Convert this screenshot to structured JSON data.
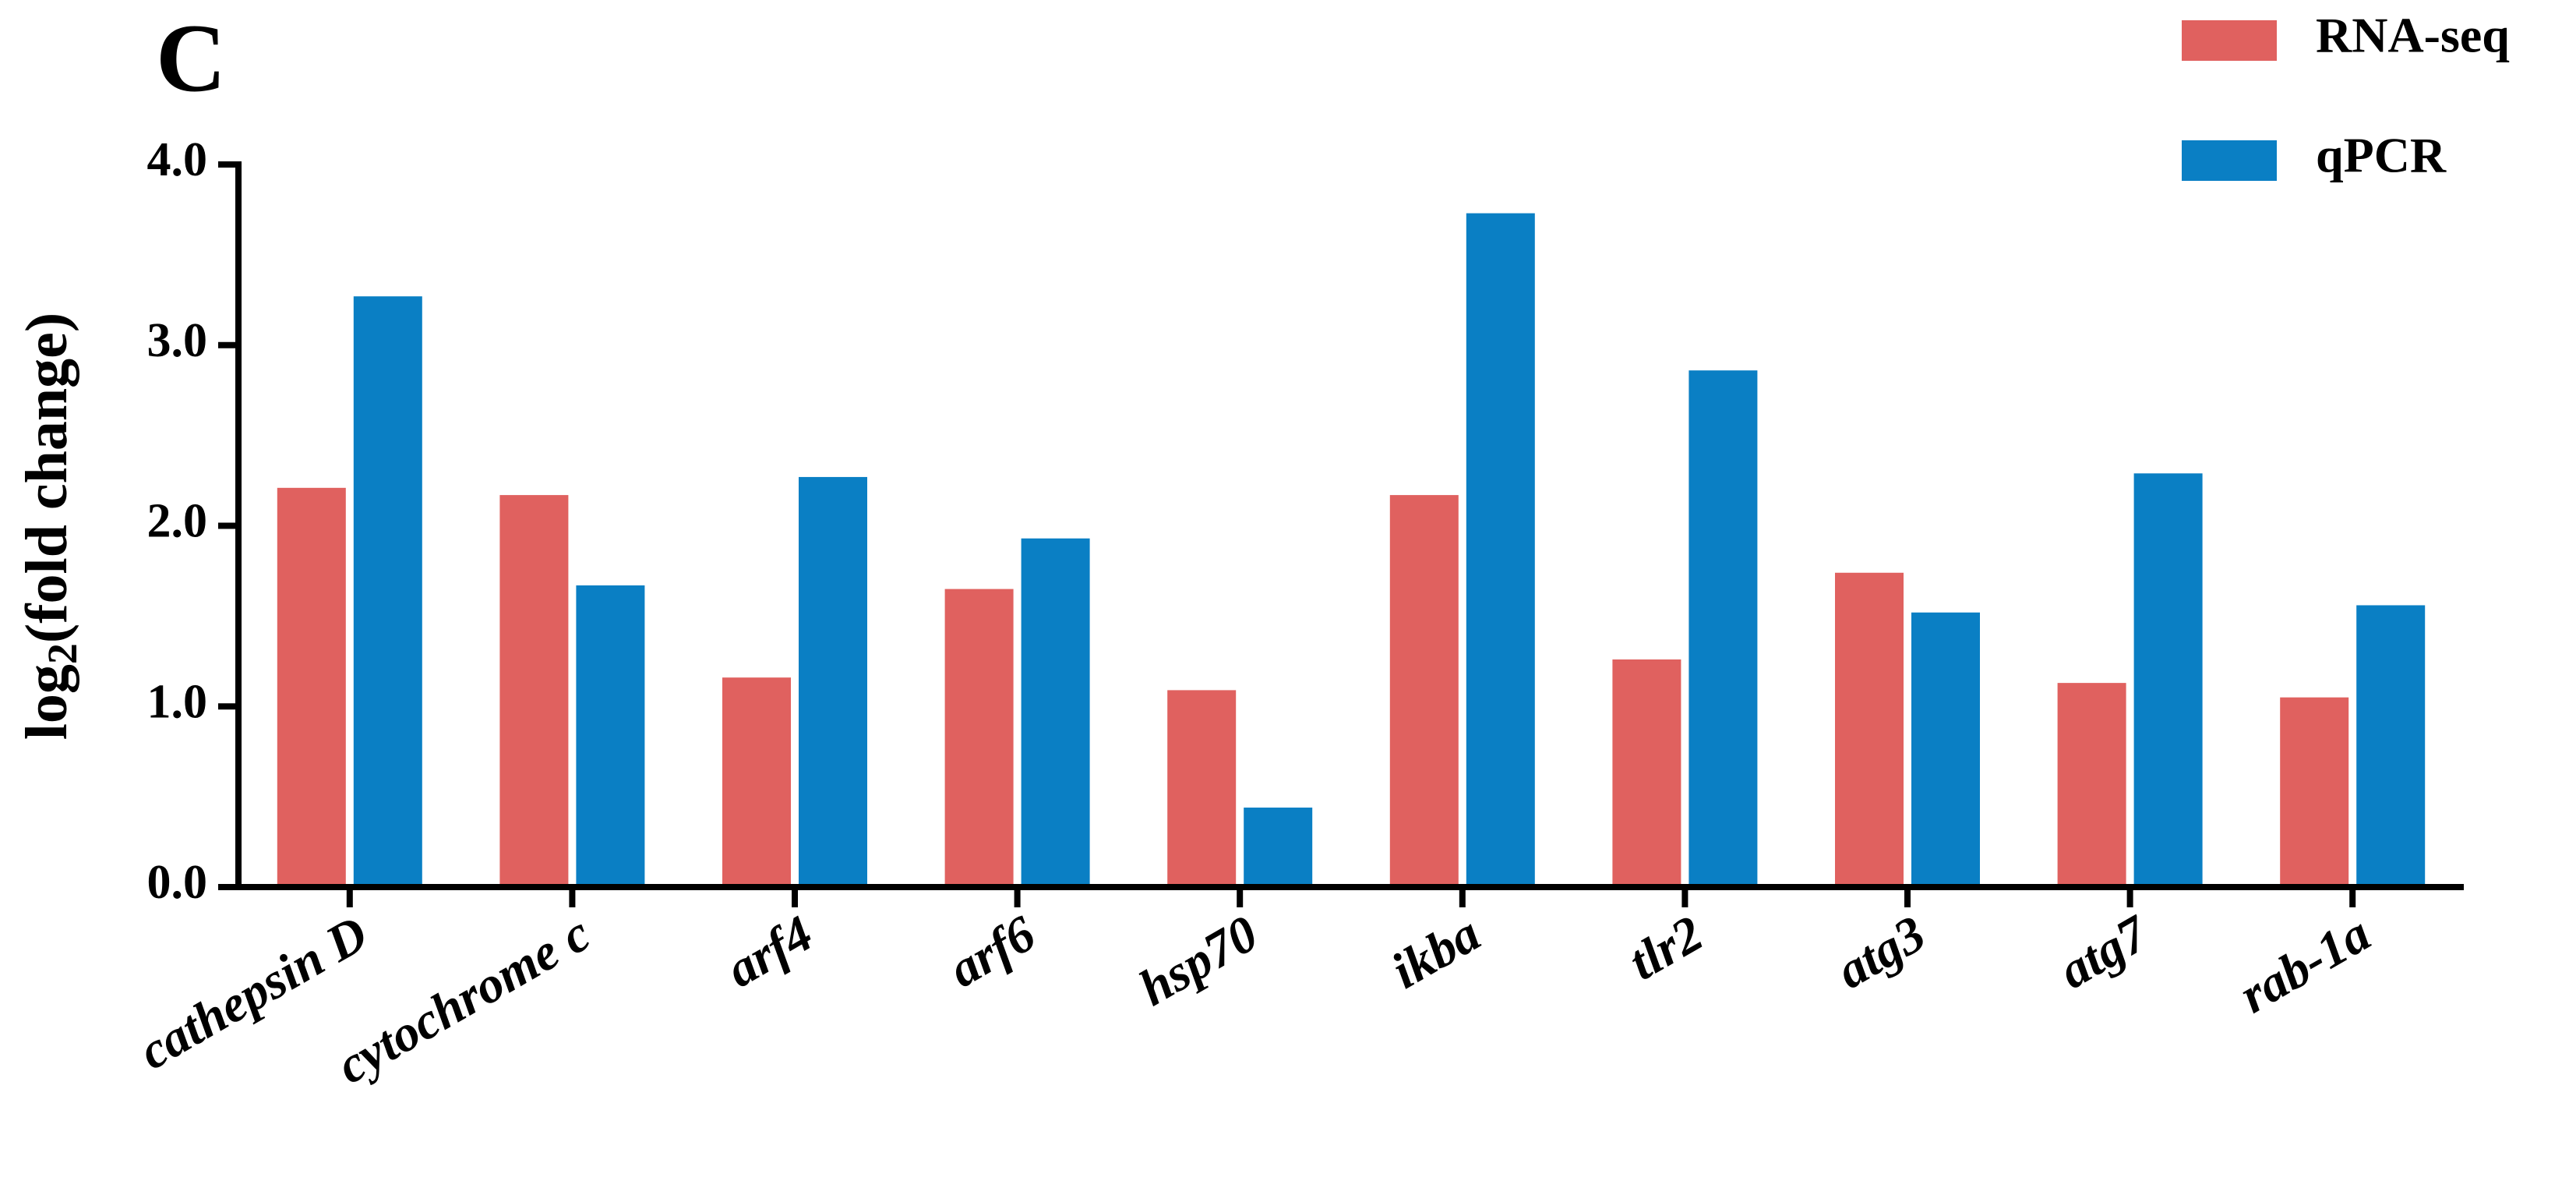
{
  "chart_data": {
    "type": "bar",
    "panel_label": "C",
    "ylabel": [
      "log",
      "2",
      "(fold change)"
    ],
    "categories": [
      "cathepsin D",
      "cytochrome c",
      "arf4",
      "arf6",
      "hsp70",
      "ikba",
      "tlr2",
      "atg3",
      "atg7",
      "rab-1a"
    ],
    "series": [
      {
        "name": "RNA-seq",
        "color": "#e0615f",
        "values": [
          2.21,
          2.17,
          1.16,
          1.65,
          1.09,
          2.17,
          1.26,
          1.74,
          1.13,
          1.05
        ]
      },
      {
        "name": "qPCR",
        "color": "#0a7fc4",
        "values": [
          3.27,
          1.67,
          2.27,
          1.93,
          0.44,
          3.73,
          2.86,
          1.52,
          2.29,
          1.56
        ]
      }
    ],
    "ylim": [
      0,
      4.0
    ],
    "yticks": [
      {
        "value": 0,
        "label": "0.0"
      },
      {
        "value": 1,
        "label": "1.0"
      },
      {
        "value": 2,
        "label": "2.0"
      },
      {
        "value": 3,
        "label": "3.0"
      },
      {
        "value": 4,
        "label": "4.0"
      }
    ],
    "grid": false,
    "legend": "top-right"
  }
}
